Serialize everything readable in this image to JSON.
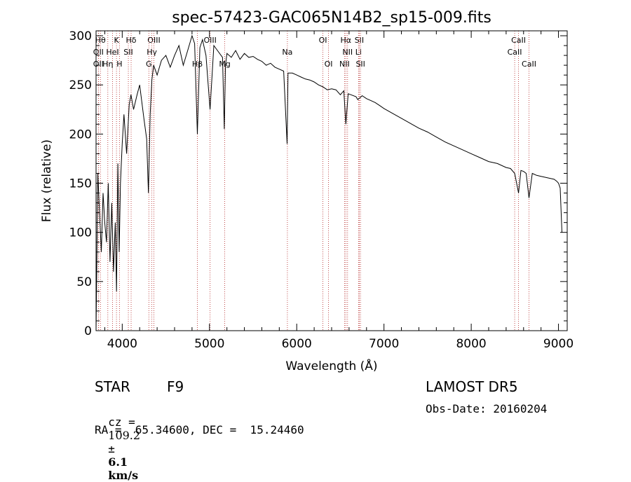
{
  "chart_data": {
    "type": "line",
    "title": "spec-57423-GAC065N14B2_sp15-009.fits",
    "xlabel": "Wavelength (Å)",
    "ylabel": "Flux (relative)",
    "xlim": [
      3700,
      9100
    ],
    "ylim": [
      0,
      305
    ],
    "xticks": [
      4000,
      5000,
      6000,
      7000,
      8000,
      9000
    ],
    "yticks": [
      0,
      50,
      100,
      150,
      200,
      250,
      300
    ],
    "grid": false,
    "line_color": "#000000",
    "marker_color": "#b22222",
    "series": [
      {
        "x": [
          3700,
          3720,
          3740,
          3760,
          3780,
          3800,
          3820,
          3840,
          3860,
          3880,
          3900,
          3920,
          3935,
          3950,
          3965,
          3980,
          4000,
          4020,
          4050,
          4080,
          4100,
          4130,
          4170,
          4200,
          4250,
          4280,
          4300,
          4320,
          4340,
          4360,
          4400,
          4450,
          4500,
          4550,
          4600,
          4650,
          4700,
          4750,
          4800,
          4830,
          4861,
          4890,
          4920,
          4960,
          5007,
          5050,
          5100,
          5150,
          5170,
          5183,
          5200,
          5250,
          5300,
          5350,
          5400,
          5450,
          5500,
          5550,
          5600,
          5650,
          5700,
          5750,
          5800,
          5850,
          5890,
          5900,
          5950,
          6000,
          6050,
          6100,
          6150,
          6200,
          6250,
          6300,
          6350,
          6400,
          6450,
          6500,
          6540,
          6563,
          6590,
          6620,
          6680,
          6700,
          6750,
          6800,
          6850,
          6900,
          6950,
          7000,
          7100,
          7200,
          7300,
          7400,
          7500,
          7600,
          7700,
          7800,
          7900,
          8000,
          8100,
          8200,
          8300,
          8400,
          8450,
          8498,
          8542,
          8570,
          8600,
          8630,
          8662,
          8700,
          8750,
          8800,
          8850,
          8900,
          8950,
          8980,
          9000,
          9020,
          9040
        ],
        "y": [
          0,
          160,
          120,
          80,
          140,
          110,
          90,
          150,
          70,
          130,
          60,
          110,
          40,
          170,
          80,
          150,
          190,
          220,
          180,
          230,
          240,
          225,
          240,
          250,
          215,
          195,
          140,
          220,
          255,
          270,
          260,
          275,
          280,
          268,
          280,
          290,
          270,
          285,
          300,
          292,
          200,
          288,
          296,
          280,
          225,
          290,
          284,
          278,
          205,
          270,
          282,
          278,
          285,
          276,
          282,
          278,
          279,
          276,
          274,
          270,
          272,
          268,
          266,
          264,
          190,
          262,
          262,
          260,
          258,
          256,
          255,
          253,
          250,
          248,
          245,
          246,
          245,
          240,
          244,
          210,
          241,
          240,
          238,
          235,
          239,
          236,
          234,
          232,
          229,
          226,
          221,
          216,
          211,
          206,
          202,
          197,
          192,
          188,
          184,
          180,
          176,
          172,
          170,
          166,
          165,
          160,
          140,
          163,
          162,
          160,
          135,
          160,
          158,
          157,
          156,
          155,
          154,
          152,
          150,
          145,
          100
        ]
      }
    ],
    "line_markers": [
      {
        "label": "Hθ",
        "x": 3750,
        "row": 0
      },
      {
        "label": "K",
        "x": 3934,
        "row": 0
      },
      {
        "label": "Hδ",
        "x": 4102,
        "row": 0
      },
      {
        "label": "OII",
        "x": 3727,
        "row": 1
      },
      {
        "label": "HeI",
        "x": 3889,
        "row": 1
      },
      {
        "label": "SII",
        "x": 4070,
        "row": 1
      },
      {
        "label": "OII",
        "x": 3727,
        "row": 2
      },
      {
        "label": "Hη",
        "x": 3835,
        "row": 2
      },
      {
        "label": "H",
        "x": 3968,
        "row": 2
      },
      {
        "label": "OIII",
        "x": 4363,
        "row": 0
      },
      {
        "label": "Hγ",
        "x": 4340,
        "row": 1
      },
      {
        "label": "G",
        "x": 4305,
        "row": 2
      },
      {
        "label": "OIII",
        "x": 5007,
        "row": 0
      },
      {
        "label": "Hβ",
        "x": 4861,
        "row": 2
      },
      {
        "label": "Mg",
        "x": 5175,
        "row": 2
      },
      {
        "label": "Na",
        "x": 5893,
        "row": 1
      },
      {
        "label": "OI",
        "x": 6300,
        "row": 0
      },
      {
        "label": "OI",
        "x": 6364,
        "row": 2
      },
      {
        "label": "Hα",
        "x": 6563,
        "row": 0
      },
      {
        "label": "SII",
        "x": 6717,
        "row": 0
      },
      {
        "label": "NII",
        "x": 6583,
        "row": 1
      },
      {
        "label": "Li",
        "x": 6708,
        "row": 1
      },
      {
        "label": "NII",
        "x": 6548,
        "row": 2
      },
      {
        "label": "SII",
        "x": 6731,
        "row": 2
      },
      {
        "label": "CaII",
        "x": 8542,
        "row": 0
      },
      {
        "label": "CaII",
        "x": 8498,
        "row": 1
      },
      {
        "label": "CaII",
        "x": 8662,
        "row": 2
      }
    ]
  },
  "info": {
    "object_class": "STAR",
    "subclass": "F9",
    "survey": "LAMOST DR5",
    "cz_label": "cz =",
    "cz_value": "109.2",
    "cz_pm": "±",
    "cz_err": "6.1",
    "cz_unit": "km/s",
    "obs_date": "Obs-Date: 20160204",
    "ra_dec": "RA =  65.34600, DEC =  15.24460"
  }
}
